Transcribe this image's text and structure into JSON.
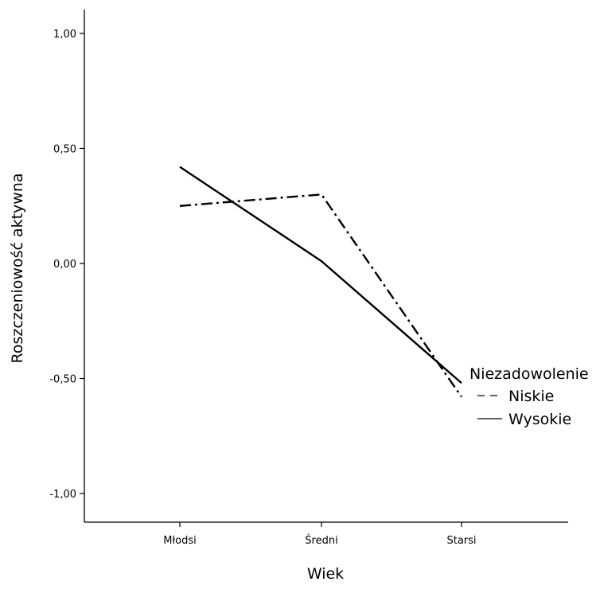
{
  "chart_data": {
    "type": "line",
    "title": "",
    "xlabel": "Wiek",
    "ylabel": "Roszczeniowość aktywna",
    "categories": [
      "Młodsi",
      "Średni",
      "Starsi"
    ],
    "ylim": [
      -1.1,
      1.1
    ],
    "yticks": [
      1.0,
      0.5,
      0.0,
      -0.5,
      -1.0
    ],
    "ytick_labels": [
      "1,00",
      "0,50",
      "0,00",
      "-0,50",
      "-1,00"
    ],
    "grid": false,
    "legend": {
      "title": "Niezadowolenie",
      "placement": "right"
    },
    "series": [
      {
        "name": "Niskie",
        "line_style": "dash-dot",
        "values": [
          0.25,
          0.3,
          -0.58
        ]
      },
      {
        "name": "Wysokie",
        "line_style": "solid",
        "values": [
          0.42,
          0.01,
          -0.52
        ]
      }
    ]
  }
}
